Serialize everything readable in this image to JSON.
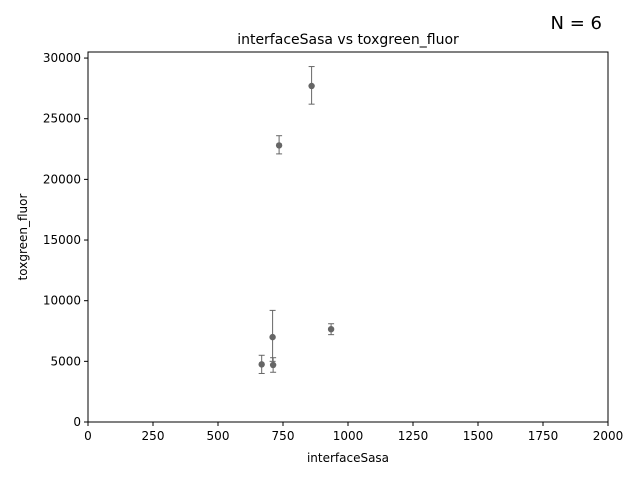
{
  "annotation": "N = 6",
  "chart_data": {
    "type": "scatter",
    "title": "interfaceSasa vs toxgreen_fluor",
    "xlabel": "interfaceSasa",
    "ylabel": "toxgreen_fluor",
    "xlim": [
      0,
      2000
    ],
    "ylim": [
      0,
      30500
    ],
    "xticks": [
      0,
      250,
      500,
      750,
      1000,
      1250,
      1500,
      1750,
      2000
    ],
    "yticks": [
      0,
      5000,
      10000,
      15000,
      20000,
      25000,
      30000
    ],
    "grid": false,
    "marker_color": "#666666",
    "points": [
      {
        "x": 860,
        "y": 27700,
        "err_low": 26200,
        "err_high": 29300
      },
      {
        "x": 735,
        "y": 22800,
        "err_low": 22100,
        "err_high": 23600
      },
      {
        "x": 710,
        "y": 7000,
        "err_low": 5000,
        "err_high": 9200
      },
      {
        "x": 935,
        "y": 7650,
        "err_low": 7200,
        "err_high": 8100
      },
      {
        "x": 668,
        "y": 4750,
        "err_low": 4000,
        "err_high": 5500
      },
      {
        "x": 712,
        "y": 4700,
        "err_low": 4100,
        "err_high": 5300
      }
    ]
  }
}
